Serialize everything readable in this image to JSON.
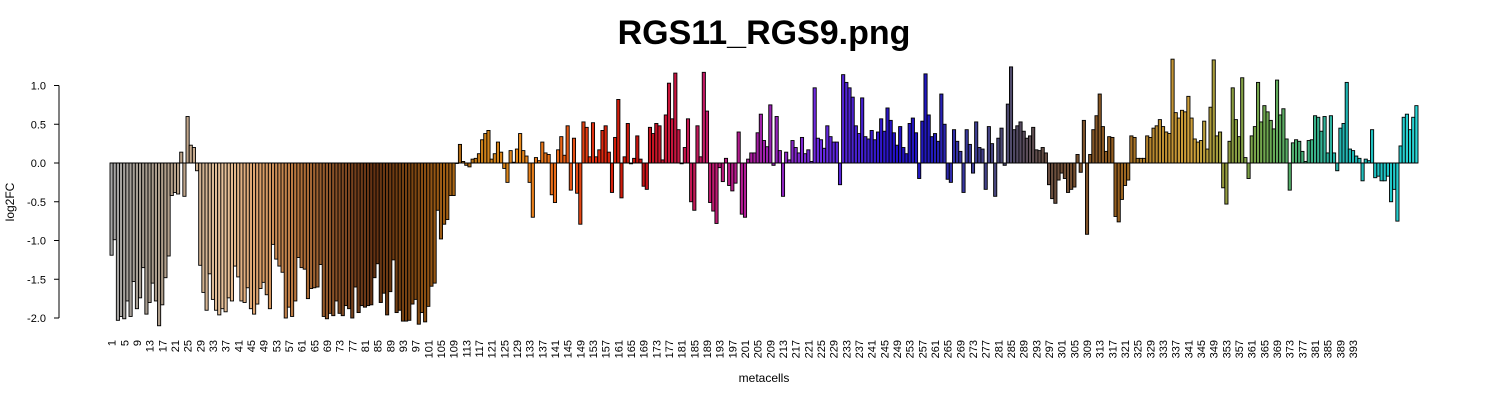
{
  "chart_data": {
    "type": "bar",
    "title": "RGS11_RGS9.png",
    "xlabel": "metacells",
    "ylabel": "log2FC",
    "ylim": [
      -2.1,
      1.35
    ],
    "yticks": [
      -2.0,
      -1.5,
      -1.0,
      -0.5,
      0.0,
      0.5,
      1.0
    ],
    "ytick_labels": [
      "-2.0",
      "-1.5",
      "-1.0",
      "-0.5",
      "0.0",
      "0.5",
      "1.0"
    ],
    "xlim": [
      1,
      396
    ],
    "xticks": [
      1,
      5,
      9,
      13,
      17,
      21,
      25,
      29,
      33,
      37,
      41,
      45,
      49,
      53,
      57,
      61,
      65,
      69,
      73,
      77,
      81,
      85,
      89,
      93,
      97,
      101,
      105,
      109,
      113,
      117,
      121,
      125,
      129,
      133,
      137,
      141,
      145,
      149,
      153,
      157,
      161,
      165,
      169,
      173,
      177,
      181,
      185,
      189,
      193,
      197,
      201,
      205,
      209,
      213,
      217,
      221,
      225,
      229,
      233,
      237,
      241,
      245,
      249,
      253,
      257,
      261,
      265,
      269,
      273,
      277,
      281,
      285,
      289,
      293,
      297,
      301,
      305,
      309,
      313,
      317,
      321,
      325,
      329,
      333,
      337,
      341,
      345,
      349,
      353,
      357,
      361,
      365,
      369,
      373,
      377,
      381,
      385,
      389,
      393
    ],
    "xtick_labels": [
      "1",
      "5",
      "9",
      "13",
      "17",
      "21",
      "25",
      "29",
      "33",
      "37",
      "41",
      "45",
      "49",
      "53",
      "57",
      "61",
      "65",
      "69",
      "73",
      "77",
      "81",
      "85",
      "89",
      "93",
      "97",
      "101",
      "105",
      "109",
      "113",
      "117",
      "121",
      "125",
      "129",
      "133",
      "137",
      "141",
      "145",
      "149",
      "153",
      "157",
      "161",
      "165",
      "169",
      "173",
      "177",
      "181",
      "185",
      "189",
      "193",
      "197",
      "201",
      "205",
      "209",
      "213",
      "217",
      "221",
      "225",
      "229",
      "233",
      "237",
      "241",
      "245",
      "249",
      "253",
      "257",
      "261",
      "265",
      "269",
      "273",
      "277",
      "281",
      "285",
      "289",
      "293",
      "297",
      "301",
      "305",
      "309",
      "313",
      "317",
      "321",
      "325",
      "329",
      "333",
      "337",
      "341",
      "345",
      "349",
      "353",
      "357",
      "361",
      "365",
      "369",
      "373",
      "377",
      "381",
      "385",
      "389",
      "393"
    ],
    "grid": false,
    "legend": "none",
    "values": [
      -1.19,
      -0.99,
      -2.03,
      -1.98,
      -2.01,
      -1.78,
      -1.98,
      -1.53,
      -1.88,
      -1.74,
      -1.35,
      -1.95,
      -1.8,
      -1.55,
      -1.78,
      -2.1,
      -1.83,
      -1.48,
      -1.2,
      -0.42,
      -0.38,
      -0.4,
      0.14,
      -0.43,
      0.6,
      0.23,
      0.2,
      -0.1,
      -1.32,
      -1.67,
      -1.9,
      -1.43,
      -1.76,
      -1.9,
      -1.96,
      -1.88,
      -1.92,
      -1.74,
      -1.78,
      -1.33,
      -1.47,
      -1.78,
      -1.8,
      -1.61,
      -1.88,
      -1.95,
      -1.82,
      -1.62,
      -1.54,
      -1.7,
      -1.88,
      -1.05,
      -1.24,
      -1.33,
      -1.41,
      -2.0,
      -1.86,
      -1.98,
      -1.78,
      -1.22,
      -1.35,
      -1.37,
      -1.75,
      -1.62,
      -1.61,
      -1.6,
      -1.31,
      -1.98,
      -2.01,
      -1.94,
      -1.97,
      -1.78,
      -1.94,
      -1.97,
      -1.84,
      -1.88,
      -2.0,
      -1.6,
      -1.93,
      -1.84,
      -1.86,
      -1.84,
      -1.83,
      -1.48,
      -1.3,
      -1.8,
      -1.68,
      -1.96,
      -1.66,
      -1.25,
      -1.93,
      -1.9,
      -2.04,
      -2.04,
      -2.03,
      -1.82,
      -1.76,
      -2.08,
      -1.93,
      -2.05,
      -1.85,
      -1.59,
      -1.55,
      -0.61,
      -0.98,
      -0.79,
      -0.73,
      -0.42,
      -0.42,
      0.0,
      0.24,
      0.02,
      -0.03,
      -0.05,
      0.05,
      0.06,
      0.12,
      0.3,
      0.38,
      0.42,
      0.05,
      0.12,
      0.27,
      0.14,
      -0.07,
      -0.25,
      0.16,
      0.01,
      0.18,
      0.38,
      0.16,
      0.09,
      -0.25,
      -0.7,
      0.07,
      0.03,
      0.27,
      0.13,
      0.11,
      -0.41,
      -0.51,
      0.17,
      0.34,
      0.1,
      0.48,
      -0.35,
      0.32,
      -0.39,
      -0.79,
      0.53,
      0.46,
      0.08,
      0.52,
      0.08,
      0.17,
      0.42,
      0.48,
      0.14,
      -0.38,
      0.33,
      0.82,
      -0.45,
      0.08,
      0.51,
      -0.01,
      0.06,
      0.35,
      0.05,
      -0.3,
      -0.34,
      0.46,
      0.38,
      0.51,
      0.48,
      0.04,
      0.62,
      1.03,
      0.57,
      1.16,
      0.43,
      -0.01,
      0.2,
      0.57,
      -0.5,
      -0.61,
      0.48,
      0.08,
      1.17,
      0.67,
      -0.51,
      -0.62,
      -0.78,
      -0.06,
      -0.24,
      0.06,
      -0.29,
      -0.36,
      -0.26,
      0.4,
      -0.66,
      -0.7,
      0.05,
      0.13,
      0.13,
      0.39,
      0.63,
      0.29,
      0.21,
      0.75,
      -0.03,
      0.6,
      0.16,
      -0.43,
      0.14,
      0.04,
      0.29,
      0.2,
      0.13,
      0.33,
      0.12,
      0.17,
      0.02,
      0.97,
      0.32,
      0.3,
      0.19,
      0.48,
      0.34,
      0.27,
      0.27,
      -0.28,
      1.14,
      1.04,
      0.97,
      0.85,
      0.48,
      0.38,
      0.84,
      0.34,
      0.31,
      0.42,
      0.3,
      0.4,
      0.57,
      0.41,
      0.71,
      0.55,
      0.39,
      0.23,
      0.47,
      0.2,
      0.12,
      0.51,
      0.58,
      0.39,
      -0.2,
      0.54,
      1.15,
      0.62,
      0.34,
      0.38,
      0.28,
      0.89,
      0.5,
      -0.21,
      -0.25,
      0.43,
      0.28,
      0.15,
      -0.38,
      0.43,
      0.24,
      -0.13,
      0.53,
      0.2,
      0.18,
      -0.34,
      0.47,
      0.25,
      -0.43,
      0.32,
      0.45,
      -0.03,
      0.76,
      1.24,
      0.43,
      0.48,
      0.53,
      0.41,
      0.32,
      0.35,
      0.46,
      0.17,
      0.16,
      0.2,
      0.13,
      -0.28,
      -0.46,
      -0.52,
      -0.22,
      -0.13,
      -0.2,
      -0.38,
      -0.34,
      -0.31,
      0.11,
      -0.12,
      0.55,
      -0.92,
      0.11,
      0.43,
      0.61,
      0.89,
      0.47,
      0.15,
      0.34,
      0.33,
      -0.69,
      -0.76,
      -0.47,
      -0.29,
      -0.22,
      0.35,
      0.33,
      0.06,
      0.06,
      0.06,
      0.35,
      0.33,
      0.45,
      0.48,
      0.56,
      0.47,
      0.4,
      0.38,
      1.34,
      0.65,
      0.58,
      0.68,
      0.66,
      0.86,
      0.58,
      0.31,
      0.27,
      0.29,
      0.54,
      0.18,
      0.72,
      1.33,
      0.35,
      0.4,
      -0.32,
      -0.53,
      0.28,
      0.97,
      0.56,
      0.34,
      1.1,
      0.07,
      -0.2,
      0.35,
      0.47,
      1.04,
      0.53,
      0.74,
      0.66,
      0.55,
      0.44,
      1.07,
      0.62,
      0.7,
      0.31,
      -0.35,
      0.26,
      0.3,
      0.28,
      0.15,
      0.02,
      0.29,
      0.3,
      0.61,
      0.59,
      0.41,
      0.6,
      0.13,
      0.61,
      0.13,
      -0.1,
      0.45,
      0.51,
      1.04,
      0.18,
      0.16,
      0.09,
      0.06,
      -0.23,
      0.05,
      0.03,
      0.43,
      -0.19,
      -0.17,
      -0.23,
      -0.23,
      -0.17,
      -0.5,
      -0.34,
      -0.75,
      0.22,
      0.59,
      0.63,
      0.43,
      0.59,
      0.74
    ]
  },
  "colors": {
    "background": "#ffffff",
    "axis": "#000000",
    "bar_outline": "#000000",
    "palette": [
      "#a6a6a6",
      "#a69a8c",
      "#bfa58a",
      "#e8c39c",
      "#dca06a",
      "#b4733c",
      "#875027",
      "#643213",
      "#7a4412",
      "#a26015",
      "#cc8019",
      "#e8891d",
      "#ea6817",
      "#e02c10",
      "#c8140a",
      "#c9163b",
      "#c01a68",
      "#b11c98",
      "#8e25c0",
      "#6b2be3",
      "#4822cf",
      "#2311c7",
      "#221abc",
      "#3b3b9a",
      "#4d4a70",
      "#664e45",
      "#7a512c",
      "#965f1f",
      "#b98a30",
      "#cfa03a",
      "#8c9a3f",
      "#6ea850",
      "#42b07a",
      "#22b4b1",
      "#1ec3c3",
      "#2ad7d7"
    ]
  }
}
